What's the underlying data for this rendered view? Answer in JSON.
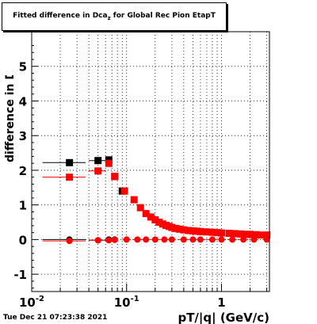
{
  "stamp": "Tue Dec 21 07:23:38 2021",
  "title": {
    "prefix": "Fitted difference in Dca",
    "sub": "z",
    "suffix": " for Global Rec Pion EtapT"
  },
  "chart_data": {
    "type": "scatter",
    "title": "Fitted difference in Dca_z for Global Rec Pion EtapT",
    "xlabel": "pT/|q| (GeV/c)",
    "ylabel": "difference in Dca_z",
    "x_scale": "log",
    "xlim": [
      0.01,
      3.2
    ],
    "ylim": [
      -1.5,
      6.0
    ],
    "grid": true,
    "x_tick_labels": [
      "10^-2",
      "10^-1",
      "1"
    ],
    "y_tick_labels": [
      "-1",
      "0",
      "1",
      "2",
      "3",
      "4",
      "5"
    ],
    "series": [
      {
        "color": "#000000",
        "x": [
          0.025,
          0.05,
          0.065,
          0.075,
          0.09
        ],
        "y": [
          2.22,
          2.28,
          2.3,
          1.82,
          1.4
        ],
        "xerr": [
          0.012,
          0.01,
          0.005,
          0.004,
          0.005
        ]
      },
      {
        "color": "#000000",
        "x": [
          0.025,
          0.05,
          0.065,
          0.075
        ],
        "y": [
          0.0,
          -0.02,
          0.0,
          0.0
        ],
        "xerr": [
          0.012,
          0.01,
          0.005,
          0.004
        ]
      },
      {
        "color": "#ff0000",
        "x": [
          0.025,
          0.05,
          0.065,
          0.075,
          0.095,
          0.12,
          0.14,
          0.16,
          0.18,
          0.2,
          0.22,
          0.24,
          0.26,
          0.28,
          0.3,
          0.33,
          0.36,
          0.4,
          0.45,
          0.5,
          0.55,
          0.6,
          0.7,
          0.8,
          0.9,
          1.0,
          1.2,
          1.4,
          1.6,
          1.8,
          2.0,
          2.3,
          2.6,
          3.0
        ],
        "y": [
          1.8,
          1.98,
          2.2,
          1.82,
          1.4,
          1.15,
          0.92,
          0.75,
          0.65,
          0.57,
          0.5,
          0.45,
          0.41,
          0.38,
          0.35,
          0.32,
          0.3,
          0.28,
          0.26,
          0.25,
          0.24,
          0.23,
          0.22,
          0.21,
          0.2,
          0.19,
          0.18,
          0.17,
          0.16,
          0.15,
          0.15,
          0.14,
          0.13,
          0.13
        ],
        "xerr": [
          0.012,
          0.01,
          0.005,
          0.004,
          0.005,
          0.006,
          0.006,
          0.006,
          0.006,
          0.006,
          0.006,
          0.006,
          0.006,
          0.006,
          0.01,
          0.01,
          0.01,
          0.015,
          0.015,
          0.02,
          0.02,
          0.03,
          0.03,
          0.04,
          0.04,
          0.05,
          0.08,
          0.08,
          0.08,
          0.08,
          0.1,
          0.12,
          0.14,
          0.16
        ]
      },
      {
        "color": "#ff0000",
        "x": [
          0.025,
          0.05,
          0.065,
          0.075,
          0.1,
          0.13,
          0.16,
          0.2,
          0.25,
          0.3,
          0.4,
          0.5,
          0.6,
          0.8,
          1.0,
          1.3,
          1.7,
          2.2,
          3.0
        ],
        "y": [
          -0.04,
          -0.02,
          -0.02,
          -0.01,
          0.0,
          0.0,
          0.0,
          0.0,
          0.0,
          0.0,
          0.0,
          0.0,
          0.0,
          0.0,
          0.0,
          0.0,
          0.0,
          0.0,
          0.0
        ],
        "xerr": [
          0.012,
          0.01,
          0.005,
          0.004,
          0.01,
          0.015,
          0.02,
          0.02,
          0.03,
          0.03,
          0.05,
          0.05,
          0.08,
          0.1,
          0.1,
          0.15,
          0.2,
          0.25,
          0.3
        ]
      }
    ]
  }
}
